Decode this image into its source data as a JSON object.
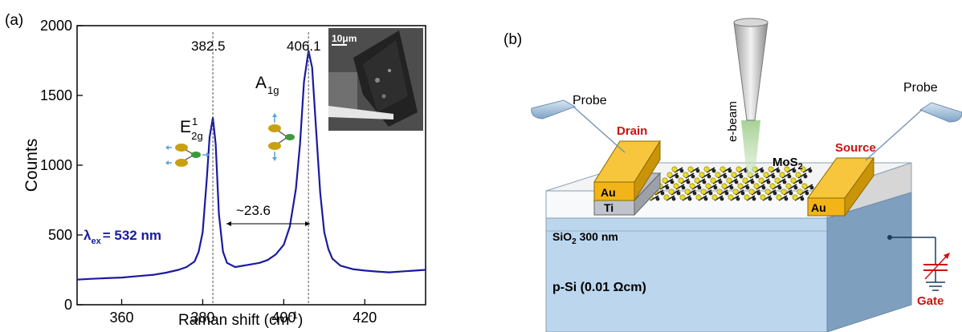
{
  "panel_a": {
    "label": "(a)",
    "peak1_pos": "382.5",
    "peak2_pos": "406.1",
    "separation": "~23.6",
    "mode1_main": "E",
    "mode1_sup": "1",
    "mode1_sub": "2g",
    "mode2_main": "A",
    "mode2_sub": "1g",
    "lambda_symbol": "λ",
    "lambda_sub": "ex",
    "lambda_value": "= 532 nm",
    "inset_scale": "10μm",
    "xlabel_main": "Raman shift (cm",
    "xlabel_sup": "-1",
    "xlabel_end": ")",
    "ylabel": "Counts"
  },
  "panel_b": {
    "label": "(b)",
    "probe_left": "Probe",
    "probe_right": "Probe",
    "ebeam": "e-beam",
    "drain": "Drain",
    "source": "Source",
    "mos2_main": "MoS",
    "mos2_sub": "2",
    "au_left": "Au",
    "ti_left": "Ti",
    "au_right": "Au",
    "sio2_main": "SiO",
    "sio2_sub": "2",
    "sio2_rest": " 300 nm",
    "psi": "p-Si (0.01 Ωcm)",
    "gate": "Gate"
  },
  "colors": {
    "spectrum": "#1a1aa0",
    "gold": "#f3b417",
    "red_label": "#cc1111",
    "substrate": "#bcd6ee",
    "substrate_side": "#7f9fbf"
  },
  "chart_data": {
    "type": "line",
    "title": "",
    "xlabel": "Raman shift (cm-1)",
    "ylabel": "Counts",
    "xlim": [
      349,
      435
    ],
    "ylim": [
      0,
      2000
    ],
    "xticks": [
      360,
      380,
      400,
      420
    ],
    "yticks": [
      0,
      500,
      1000,
      1500,
      2000
    ],
    "grid": false,
    "series": [
      {
        "x": [
          349,
          352,
          356,
          360,
          364,
          368,
          371,
          374,
          376,
          378,
          379,
          380,
          381,
          381.7,
          382.5,
          383.2,
          384,
          385,
          386,
          388,
          391,
          394,
          396,
          398,
          400,
          401.5,
          403,
          404,
          405,
          406.1,
          407,
          408,
          409,
          410,
          411,
          412,
          414,
          417,
          420,
          423,
          426,
          430,
          435
        ],
        "y": [
          180,
          185,
          190,
          195,
          205,
          215,
          230,
          250,
          270,
          310,
          380,
          520,
          900,
          1200,
          1340,
          1150,
          650,
          380,
          300,
          270,
          285,
          300,
          320,
          360,
          430,
          560,
          830,
          1150,
          1600,
          1820,
          1700,
          1250,
          800,
          520,
          400,
          330,
          280,
          255,
          245,
          238,
          232,
          240,
          250
        ]
      }
    ]
  }
}
